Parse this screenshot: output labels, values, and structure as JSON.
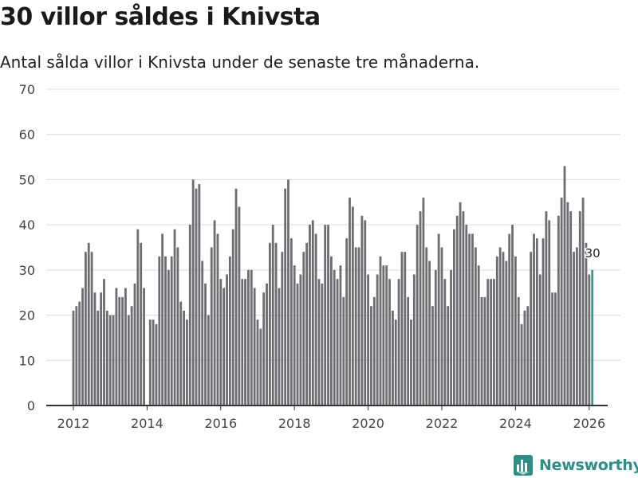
{
  "title": "30 villor såldes i Knivsta",
  "subtitle": "Antal sålda villor i Knivsta under de senaste tre månaderna.",
  "brand": {
    "name": "Newsworthy",
    "icon": "newsworthy-logo-icon",
    "color": "#2e8f86"
  },
  "chart_data": {
    "type": "bar",
    "title": "30 villor såldes i Knivsta",
    "xlabel": "",
    "ylabel": "",
    "ylim": [
      0,
      70
    ],
    "yticks": [
      0,
      10,
      20,
      30,
      40,
      50,
      60,
      70
    ],
    "xticks": [
      "2012",
      "2014",
      "2016",
      "2018",
      "2020",
      "2022",
      "2024",
      "2026"
    ],
    "x_start": "2012-01",
    "grid": true,
    "bar_color": "#6d6d72",
    "highlight_color": "#2e9e95",
    "highlight_label": "30",
    "values": [
      21,
      22,
      23,
      26,
      34,
      36,
      34,
      25,
      21,
      25,
      28,
      21,
      20,
      20,
      26,
      24,
      24,
      26,
      20,
      22,
      27,
      39,
      36,
      26,
      0,
      19,
      19,
      18,
      33,
      38,
      33,
      30,
      33,
      39,
      35,
      23,
      21,
      19,
      40,
      50,
      48,
      49,
      32,
      27,
      20,
      35,
      41,
      38,
      28,
      26,
      29,
      33,
      39,
      48,
      44,
      28,
      28,
      30,
      30,
      26,
      19,
      17,
      25,
      27,
      36,
      40,
      36,
      26,
      34,
      48,
      50,
      37,
      31,
      27,
      29,
      34,
      36,
      40,
      41,
      38,
      28,
      27,
      40,
      40,
      33,
      30,
      28,
      31,
      24,
      37,
      46,
      44,
      35,
      35,
      42,
      41,
      29,
      22,
      24,
      29,
      33,
      31,
      31,
      28,
      21,
      19,
      28,
      34,
      34,
      24,
      19,
      29,
      40,
      43,
      46,
      35,
      32,
      22,
      30,
      38,
      35,
      28,
      22,
      30,
      39,
      42,
      45,
      43,
      40,
      38,
      38,
      35,
      31,
      24,
      24,
      28,
      28,
      28,
      33,
      35,
      34,
      32,
      38,
      40,
      33,
      24,
      18,
      21,
      22,
      34,
      38,
      37,
      29,
      37,
      43,
      41,
      25,
      25,
      42,
      46,
      53,
      45,
      43,
      34,
      35,
      43,
      46,
      36,
      29,
      30
    ]
  }
}
